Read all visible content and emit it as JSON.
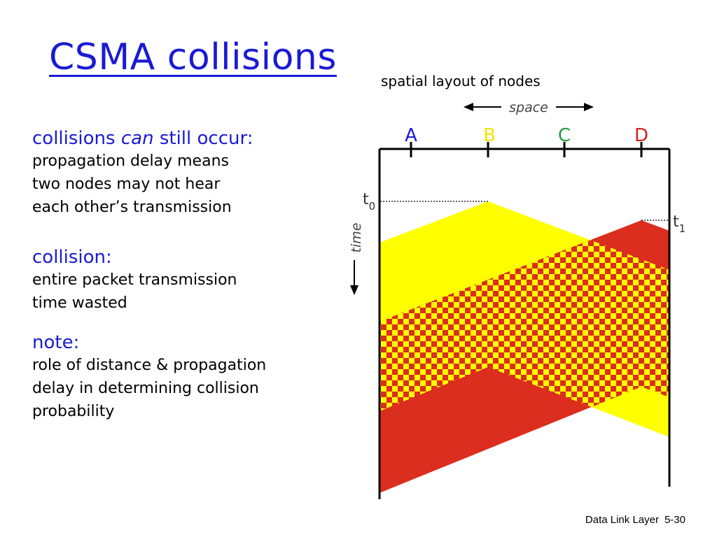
{
  "slide": {
    "title": "CSMA collisions",
    "caption": "spatial layout of nodes",
    "footer": {
      "chapter": "Data Link Layer",
      "page": "5-30"
    }
  },
  "points": [
    {
      "heading_parts": [
        "collisions ",
        "can",
        " still occur:"
      ],
      "lines": [
        "propagation delay means",
        "two nodes may not hear",
        "each other’s transmission"
      ]
    },
    {
      "heading": "collision:",
      "lines": [
        "entire packet transmission",
        "time wasted"
      ]
    },
    {
      "heading": "note:",
      "lines": [
        "role of distance & propagation",
        "delay in determining collision",
        "probability"
      ]
    }
  ],
  "diagram": {
    "space_label": "space",
    "time_label": "time",
    "nodes": [
      {
        "label": "A",
        "color": "#1a1ad4"
      },
      {
        "label": "B",
        "color": "#f2e500"
      },
      {
        "label": "C",
        "color": "#1f9e3c"
      },
      {
        "label": "D",
        "color": "#d42020"
      }
    ],
    "time_markers": [
      {
        "label": "t",
        "sub": "0"
      },
      {
        "label": "t",
        "sub": "1"
      }
    ],
    "colors": {
      "b_transmission": "#ffff00",
      "d_transmission": "#dc2e1e",
      "collision_a": "#ffff00",
      "collision_b": "#dc2e1e"
    }
  }
}
